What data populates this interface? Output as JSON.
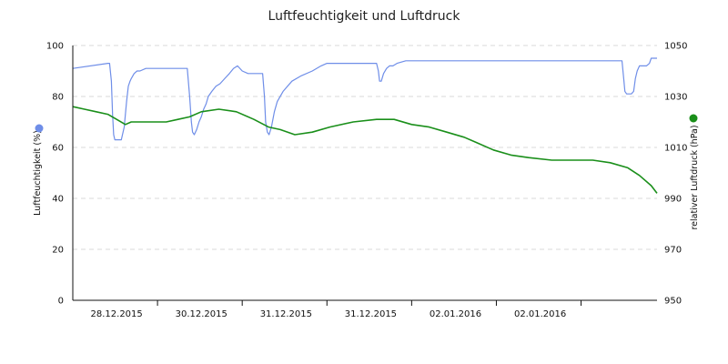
{
  "chart_data": {
    "type": "line",
    "title": "Luftfeuchtigkeit und Luftdruck",
    "y_left": {
      "label": "Luftfeuchtigkeit (%)",
      "lim": [
        0,
        100
      ],
      "ticks": [
        "0",
        "20",
        "40",
        "60",
        "80",
        "100"
      ],
      "tick_values": [
        0,
        20,
        40,
        60,
        80,
        100
      ]
    },
    "y_right": {
      "label": "relativer Luftdruck (hPa)",
      "lim": [
        950,
        1050
      ],
      "ticks": [
        "950",
        "970",
        "990",
        "1010",
        "1030",
        "1050"
      ],
      "tick_values": [
        950,
        970,
        990,
        1010,
        1030,
        1050
      ]
    },
    "x_ticks": [
      "28.12.2015",
      "30.12.2015",
      "31.12.2015",
      "31.12.2015",
      "02.01.2016",
      "02.01.2016"
    ],
    "x_tick_positions": [
      0.075,
      0.22,
      0.365,
      0.51,
      0.655,
      0.8
    ],
    "grid": true,
    "series": [
      {
        "axis": "left",
        "color": "#6f8ee8",
        "x": [
          0.0,
          0.06,
          0.063,
          0.066,
          0.068,
          0.07,
          0.072,
          0.075,
          0.078,
          0.083,
          0.088,
          0.092,
          0.095,
          0.098,
          0.1,
          0.105,
          0.11,
          0.115,
          0.125,
          0.14,
          0.15,
          0.16,
          0.18,
          0.196,
          0.2,
          0.203,
          0.205,
          0.208,
          0.212,
          0.216,
          0.22,
          0.224,
          0.228,
          0.232,
          0.238,
          0.245,
          0.252,
          0.26,
          0.268,
          0.275,
          0.282,
          0.29,
          0.3,
          0.31,
          0.325,
          0.328,
          0.33,
          0.333,
          0.336,
          0.34,
          0.345,
          0.35,
          0.36,
          0.375,
          0.39,
          0.41,
          0.425,
          0.435,
          0.45,
          0.52,
          0.523,
          0.525,
          0.528,
          0.532,
          0.537,
          0.542,
          0.548,
          0.555,
          0.57,
          0.575,
          0.578,
          0.582,
          0.586,
          0.59,
          0.595,
          0.605,
          0.625,
          0.68,
          0.75,
          0.79,
          0.845,
          0.94,
          0.943,
          0.945,
          0.948,
          0.952,
          0.956,
          0.96,
          0.963,
          0.966,
          0.97,
          0.975,
          0.982,
          0.987,
          0.99,
          1.0
        ],
        "values": [
          91,
          93,
          93,
          86,
          73,
          65,
          63,
          63,
          63,
          63,
          68,
          78,
          84,
          86,
          87,
          89,
          90,
          90,
          91,
          91,
          91,
          91,
          91,
          91,
          80,
          70,
          66,
          65,
          67,
          70,
          72,
          75,
          77,
          80,
          82,
          84,
          85,
          87,
          89,
          91,
          92,
          90,
          89,
          89,
          89,
          80,
          70,
          66,
          65,
          68,
          74,
          78,
          82,
          86,
          88,
          90,
          92,
          93,
          93,
          93,
          90,
          86,
          86,
          89,
          91,
          92,
          92,
          93,
          94,
          94,
          94,
          94,
          94,
          94,
          94,
          94,
          94,
          94,
          94,
          94,
          94,
          94,
          87,
          82,
          81,
          81,
          81,
          82,
          87,
          90,
          92,
          92,
          92,
          93,
          95,
          95
        ]
      },
      {
        "axis": "right",
        "color": "#1a8f1a",
        "x": [
          0.0,
          0.02,
          0.04,
          0.06,
          0.075,
          0.09,
          0.1,
          0.12,
          0.14,
          0.16,
          0.18,
          0.2,
          0.22,
          0.25,
          0.28,
          0.31,
          0.335,
          0.355,
          0.38,
          0.41,
          0.44,
          0.48,
          0.52,
          0.55,
          0.58,
          0.61,
          0.64,
          0.67,
          0.69,
          0.72,
          0.75,
          0.78,
          0.82,
          0.86,
          0.89,
          0.92,
          0.95,
          0.97,
          0.99,
          1.0
        ],
        "values": [
          1026,
          1025,
          1024,
          1023,
          1021,
          1019,
          1020,
          1020,
          1020,
          1020,
          1021,
          1022,
          1024,
          1025,
          1024,
          1021,
          1018,
          1017,
          1015,
          1016,
          1018,
          1020,
          1021,
          1021,
          1019,
          1018,
          1016,
          1014,
          1012,
          1009,
          1007,
          1006,
          1005,
          1005,
          1005,
          1004,
          1002,
          999,
          995,
          992
        ]
      }
    ]
  }
}
